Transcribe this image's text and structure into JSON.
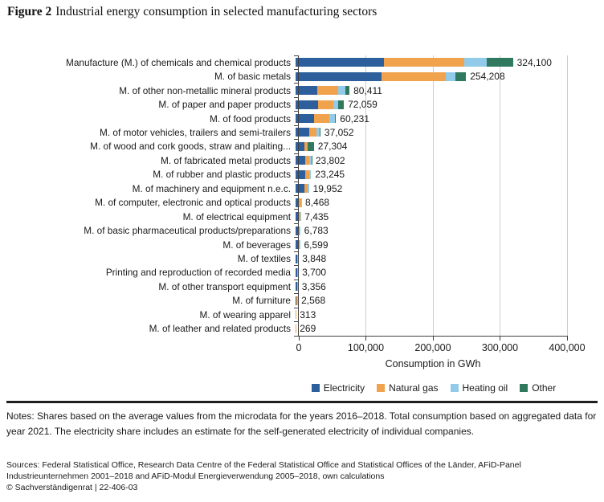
{
  "title": {
    "prefix": "Figure 2",
    "text": "Industrial energy consumption in selected manufacturing sectors"
  },
  "chart_data": {
    "type": "bar",
    "orientation": "horizontal_stacked",
    "title": "Industrial energy consumption in selected manufacturing sectors",
    "xlabel": "Consumption in GWh",
    "ylabel": "",
    "xlim": [
      0,
      400000
    ],
    "grid": "vertical",
    "legend_position": "bottom",
    "categories": [
      "Manufacture (M.) of chemicals and chemical products",
      "M. of basic metals",
      "M. of other non-metallic mineral products",
      "M. of paper and paper products",
      "M. of food products",
      "M. of motor vehicles, trailers and semi-trailers",
      "M. of wood and cork goods, straw and plaiting...",
      "M. of fabricated metal products",
      "M. of rubber and plastic products",
      "M. of machinery and equipment n.e.c.",
      "M. of computer, electronic and optical products",
      "M. of electrical equipment",
      "M. of basic pharmaceutical products/preparations",
      "M. of beverages",
      "M. of textiles",
      "Printing and reproduction of recorded media",
      "M. of other transport equipment",
      "M. of furniture",
      "M. of wearing apparel",
      "M. of leather and related products"
    ],
    "series": [
      {
        "name": "Electricity",
        "color": "#2d5f9c",
        "values": [
          132000,
          128300,
          32000,
          34000,
          28000,
          20700,
          13600,
          14900,
          14400,
          13300,
          4600,
          4200,
          3600,
          3300,
          2000,
          2200,
          1900,
          1300,
          200,
          170
        ]
      },
      {
        "name": "Natural gas",
        "color": "#f0a24d",
        "values": [
          120000,
          95300,
          31900,
          21800,
          22400,
          10400,
          4500,
          5900,
          6400,
          5200,
          3400,
          2800,
          2700,
          2800,
          1500,
          1200,
          1200,
          900,
          113,
          99
        ]
      },
      {
        "name": "Heating oil",
        "color": "#92cbea",
        "values": [
          33500,
          14700,
          10100,
          8100,
          8400,
          4400,
          100,
          2800,
          2445,
          1452,
          468,
          435,
          483,
          499,
          348,
          300,
          256,
          368,
          0,
          0
        ]
      },
      {
        "name": "Other",
        "color": "#30795f",
        "values": [
          38600,
          15908,
          6411,
          8159,
          1431,
          1552,
          9104,
          202,
          0,
          0,
          0,
          0,
          0,
          0,
          0,
          0,
          0,
          0,
          0,
          0
        ]
      }
    ],
    "totals": [
      324100,
      254208,
      80411,
      72059,
      60231,
      37052,
      27304,
      23802,
      23245,
      19952,
      8468,
      7435,
      6783,
      6599,
      3848,
      3700,
      3356,
      2568,
      313,
      269
    ],
    "total_labels": [
      "324,100",
      "254,208",
      "80,411",
      "72,059",
      "60,231",
      "37,052",
      "27,304",
      "23,802",
      "23,245",
      "19,952",
      "8,468",
      "7,435",
      "6,783",
      "6,599",
      "3,848",
      "3,700",
      "3,356",
      "2,568",
      "313",
      "269"
    ],
    "x_ticks": [
      {
        "value": 0,
        "label": "0"
      },
      {
        "value": 100000,
        "label": "100,000"
      },
      {
        "value": 200000,
        "label": "200,000"
      },
      {
        "value": 300000,
        "label": "300,000"
      },
      {
        "value": 400000,
        "label": "400,000"
      }
    ]
  },
  "notes": "Notes: Shares based on the average values from the microdata for the years 2016–2018. Total consumption based on aggregated data for year 2021. The electricity share includes an estimate for the self-generated electricity of individual companies.",
  "sources": "Sources: Federal Statistical Office, Research Data Centre of the Federal Statistical Office and Statistical Offices of the Länder, AFiD-Panel Industrieunternehmen 2001–2018 and AFiD-Modul Energieverwendung 2005–2018, own calculations",
  "copyright": "© Sachverständigenrat | 22-406-03"
}
